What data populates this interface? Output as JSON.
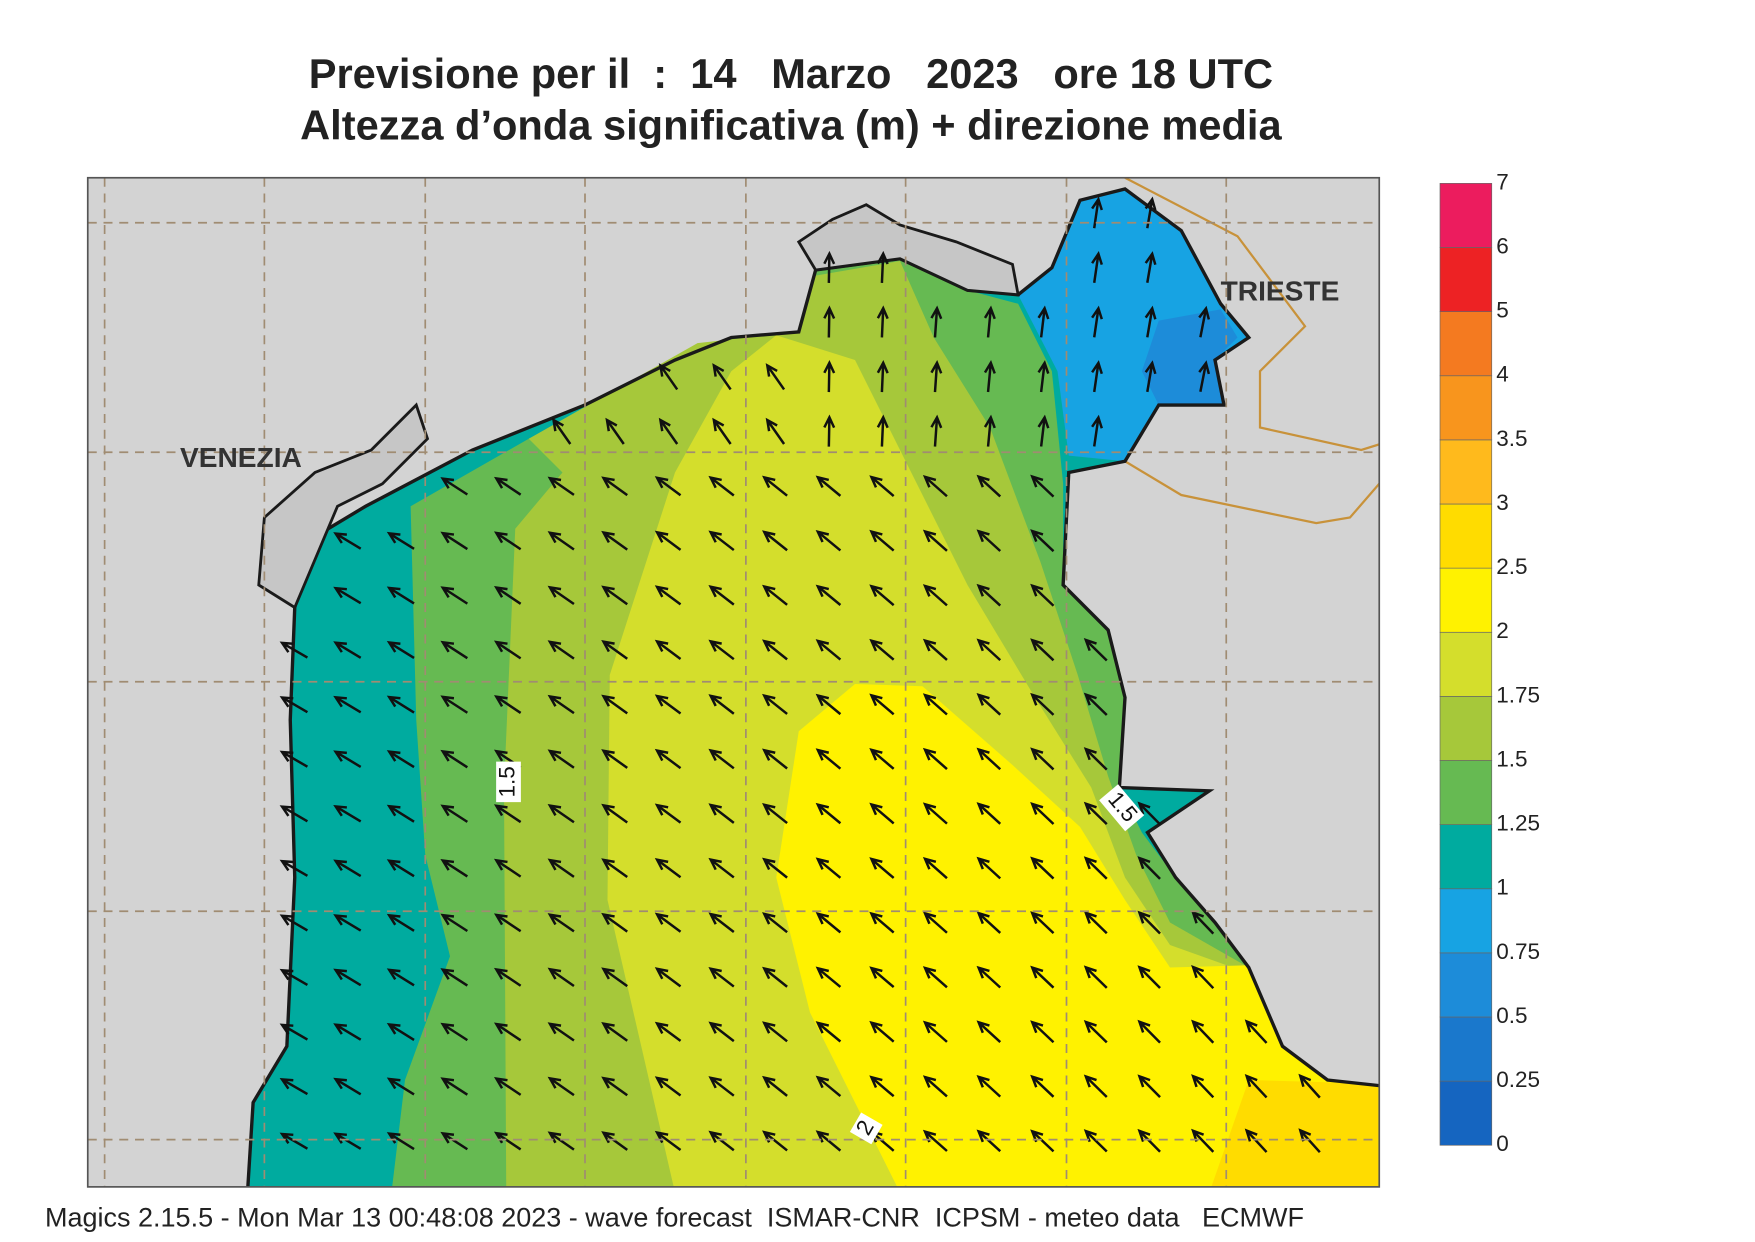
{
  "header": {
    "title_line1": "Previsione per il  :  14   Marzo   2023   ore 18 UTC",
    "title_line2": "Altezza d’onda significativa (m) + direzione media"
  },
  "places": [
    {
      "label": "VENEZIA"
    },
    {
      "label": "TRIESTE"
    }
  ],
  "contour_labels": [
    "1.5",
    "1.5",
    "2"
  ],
  "legend": {
    "levels": [
      0,
      0.25,
      0.5,
      0.75,
      1,
      1.25,
      1.5,
      1.75,
      2,
      2.5,
      3,
      3.5,
      4,
      5,
      6,
      7
    ],
    "colors": [
      "#1565c0",
      "#1a78cc",
      "#1d8cd9",
      "#17a3e3",
      "#00ab9f",
      "#66ba52",
      "#a6c83a",
      "#d4de2c",
      "#fff200",
      "#ffdc00",
      "#ffba1c",
      "#f8951d",
      "#f47a20",
      "#ed2224",
      "#ec1c5e"
    ]
  },
  "footer": "Magics 2.15.5 - Mon Mar 13 00:48:08 2023 - wave forecast  ISMAR-CNR  ICPSM - meteo data   ECMWF"
}
